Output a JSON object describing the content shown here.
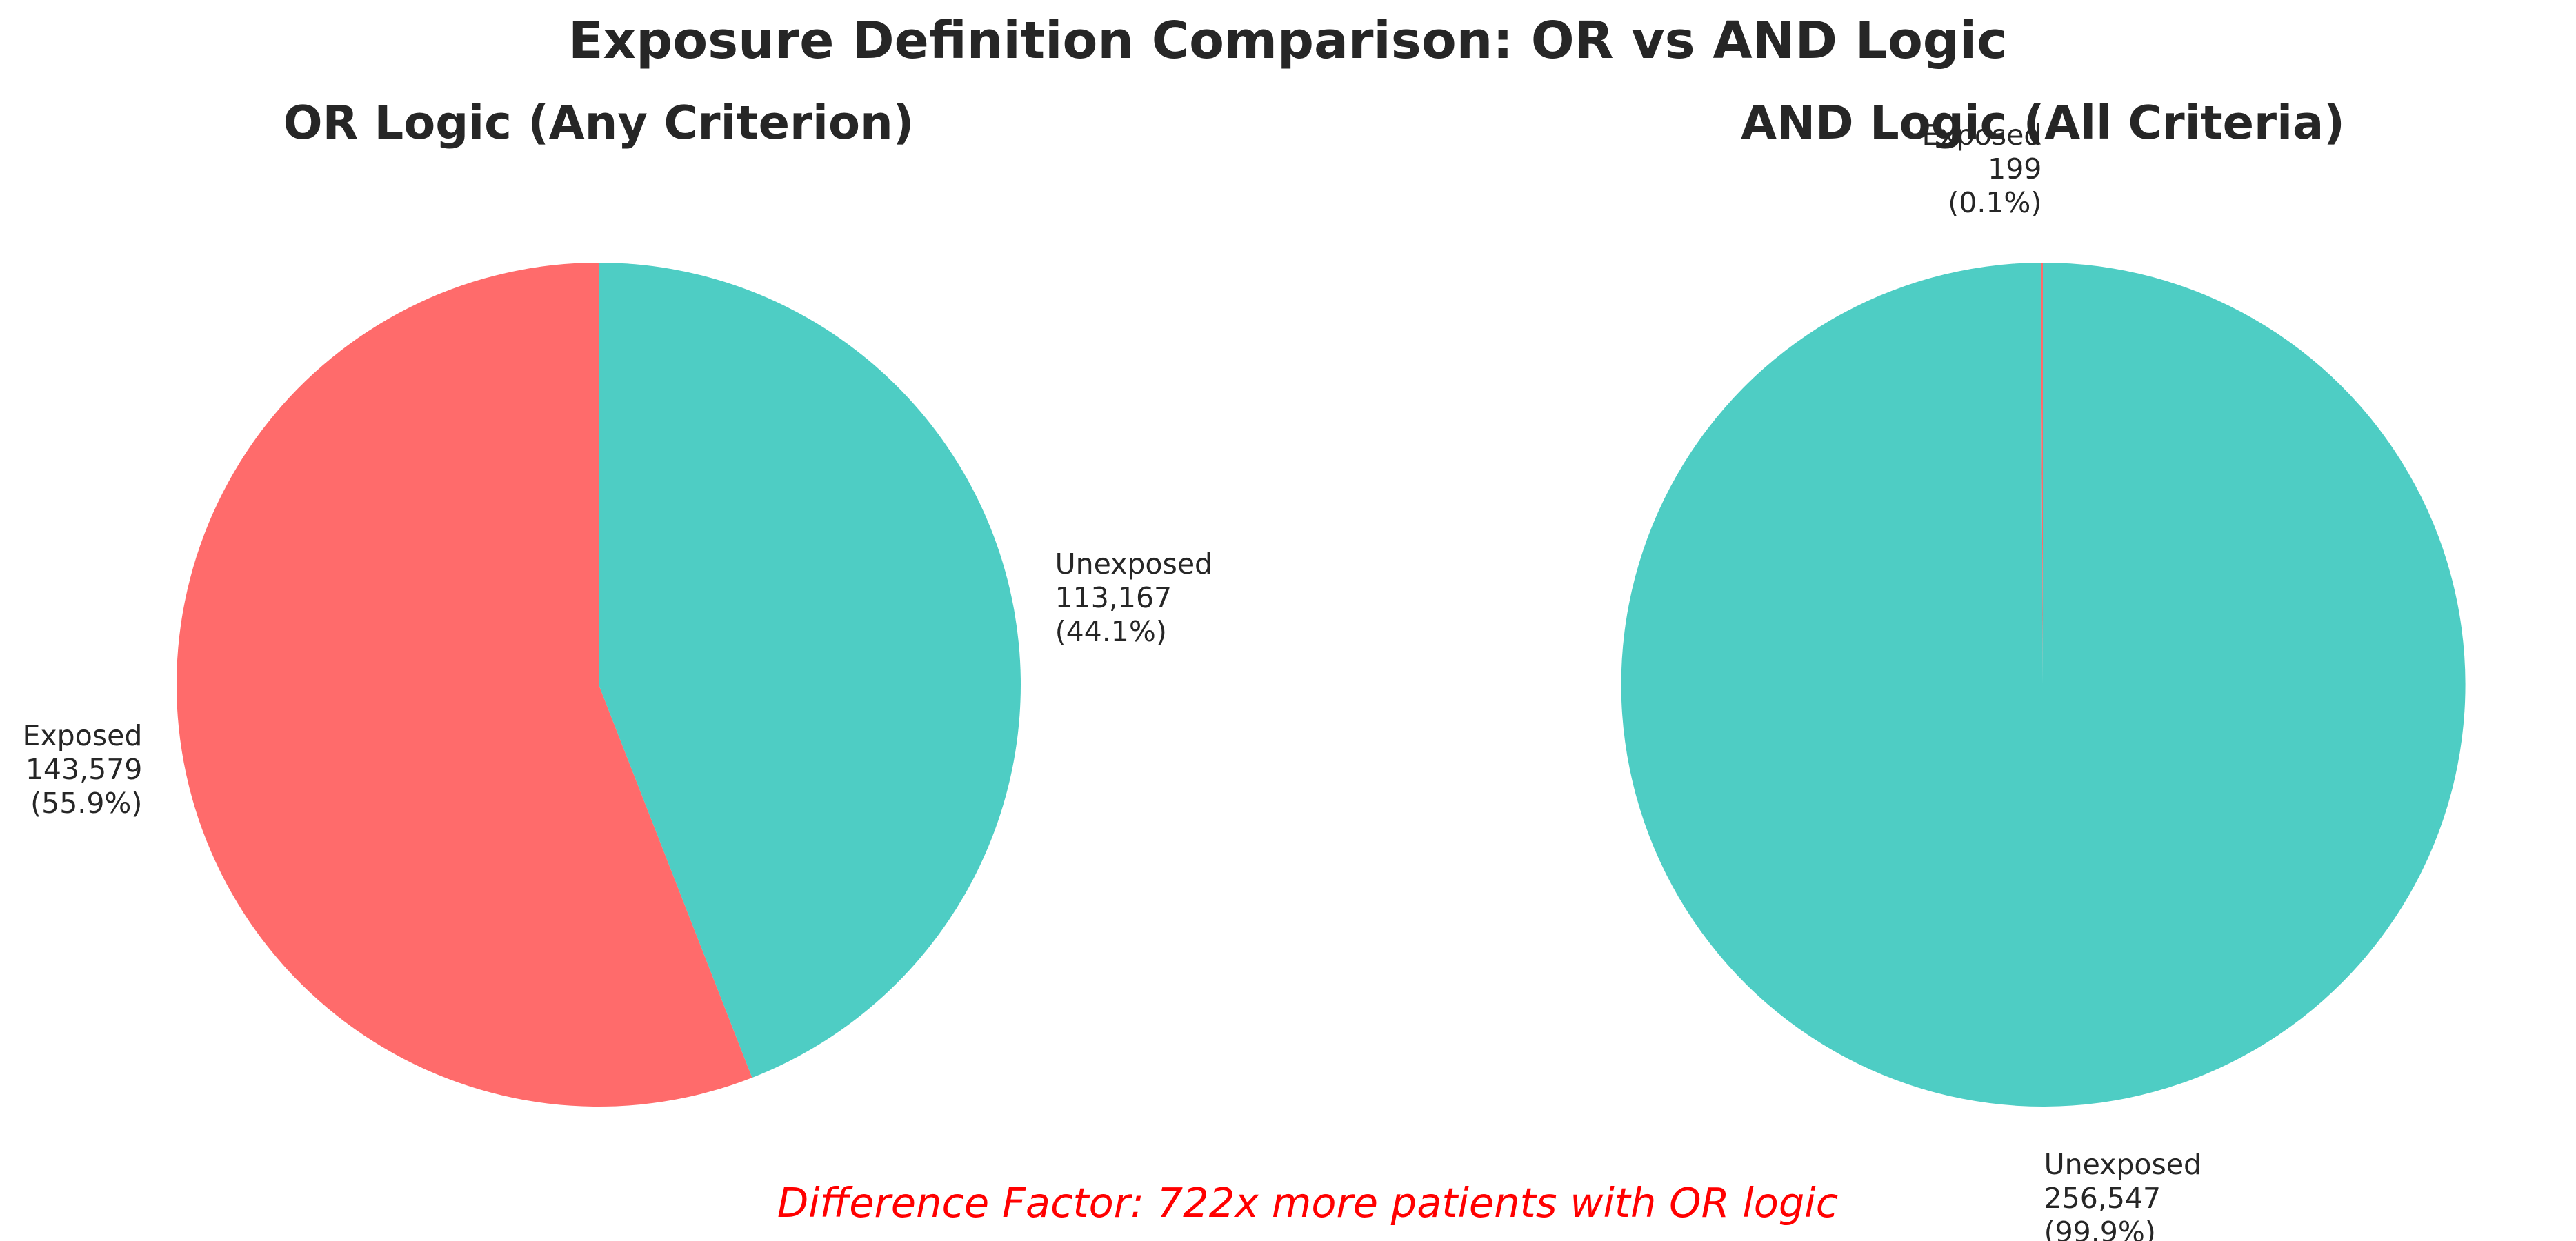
{
  "figure": {
    "title": "Exposure Definition Comparison: OR vs AND Logic",
    "footnote": "Difference Factor: 722x more patients with OR logic",
    "footnote_color": "#ff0000"
  },
  "chart_data": [
    {
      "type": "pie",
      "title": "OR Logic (Any Criterion)",
      "slices": [
        {
          "label": "Exposed",
          "value": 143579,
          "value_text": "143,579",
          "percent_text": "(55.9%)",
          "color": "#ff6b6b"
        },
        {
          "label": "Unexposed",
          "value": 113167,
          "value_text": "113,167",
          "percent_text": "(44.1%)",
          "color": "#4ecdc4"
        }
      ]
    },
    {
      "type": "pie",
      "title": "AND Logic (All Criteria)",
      "slices": [
        {
          "label": "Exposed",
          "value": 199,
          "value_text": "199",
          "percent_text": "(0.1%)",
          "color": "#ff6b6b"
        },
        {
          "label": "Unexposed",
          "value": 256547,
          "value_text": "256,547",
          "percent_text": "(99.9%)",
          "color": "#4ecdc4"
        }
      ]
    }
  ]
}
